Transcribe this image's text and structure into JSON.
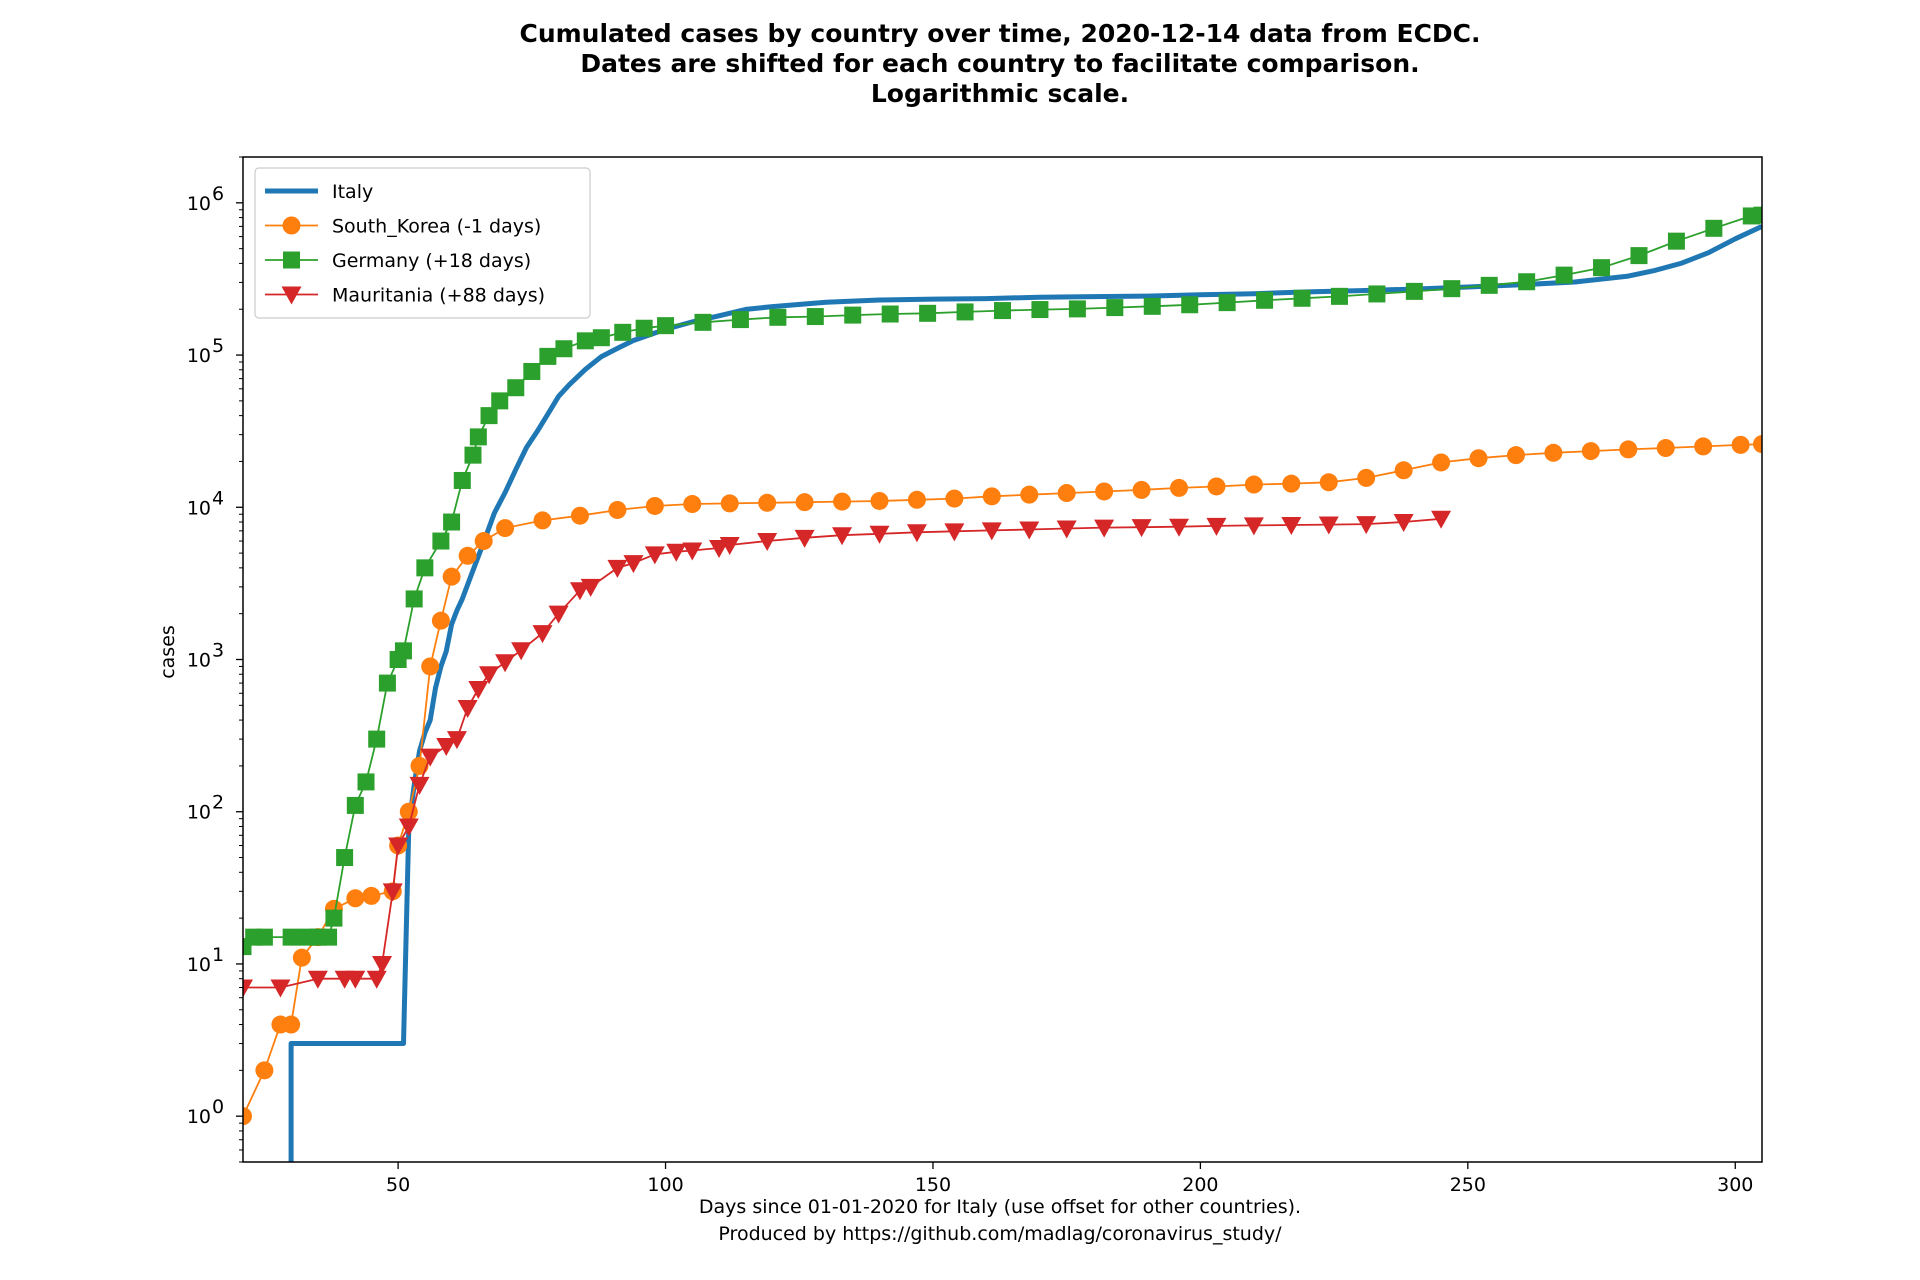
{
  "chart_data": {
    "type": "line",
    "title_lines": [
      "Cumulated cases by country over time, 2020-12-14 data from ECDC.",
      "Dates are shifted for each country to facilitate comparison.",
      "Logarithmic scale."
    ],
    "xlabel_lines": [
      "Days since 01-01-2020 for Italy (use offset for other countries).",
      "Produced by https://github.com/madlag/coronavirus_study/"
    ],
    "ylabel": "cases",
    "y_scale": "log",
    "xlim": [
      21,
      305
    ],
    "ylim": [
      0.5,
      2000000
    ],
    "x_ticks": [
      50,
      100,
      150,
      200,
      250,
      300
    ],
    "y_ticks": [
      {
        "value": 1,
        "base": "10",
        "exp": "0"
      },
      {
        "value": 10,
        "base": "10",
        "exp": "1"
      },
      {
        "value": 100,
        "base": "10",
        "exp": "2"
      },
      {
        "value": 1000,
        "base": "10",
        "exp": "3"
      },
      {
        "value": 10000,
        "base": "10",
        "exp": "4"
      },
      {
        "value": 100000,
        "base": "10",
        "exp": "5"
      },
      {
        "value": 1000000,
        "base": "10",
        "exp": "6"
      }
    ],
    "legend_position": "top-left",
    "grid": false,
    "series": [
      {
        "name": "Italy",
        "color": "#1f77b4",
        "marker": "none",
        "line_width": "thick",
        "x": [
          30,
          30,
          31,
          51,
          52,
          53,
          54,
          55,
          56,
          57,
          58,
          59,
          60,
          61,
          62,
          64,
          66,
          68,
          70,
          72,
          74,
          76,
          78,
          80,
          82,
          85,
          88,
          91,
          94,
          97,
          100,
          105,
          110,
          115,
          120,
          130,
          140,
          150,
          160,
          170,
          180,
          190,
          200,
          210,
          220,
          230,
          240,
          250,
          260,
          270,
          280,
          285,
          290,
          295,
          300,
          305
        ],
        "y": [
          0.5,
          3,
          3,
          3,
          80,
          150,
          250,
          330,
          400,
          650,
          900,
          1130,
          1700,
          2100,
          2500,
          3850,
          5900,
          9170,
          12500,
          17700,
          24700,
          31500,
          41000,
          53600,
          63900,
          80500,
          97700,
          110600,
          124600,
          135600,
          147600,
          165000,
          181000,
          199400,
          208000,
          222000,
          230000,
          233000,
          235000,
          240000,
          242000,
          244000,
          249000,
          253000,
          260000,
          265000,
          271000,
          280000,
          290000,
          302000,
          330000,
          360000,
          402000,
          470000,
          580000,
          700000
        ]
      },
      {
        "name": "South_Korea (-1 days)",
        "color": "#ff7f0e",
        "marker": "circle",
        "x": [
          21,
          25,
          28,
          30,
          32,
          35,
          38,
          42,
          45,
          49,
          50,
          52,
          54,
          56,
          58,
          60,
          63,
          66,
          70,
          77,
          84,
          91,
          98,
          105,
          112,
          119,
          126,
          133,
          140,
          147,
          154,
          161,
          168,
          175,
          182,
          189,
          196,
          203,
          210,
          217,
          224,
          231,
          238,
          245,
          252,
          259,
          266,
          273,
          280,
          287,
          294,
          301,
          305
        ],
        "y": [
          1,
          2,
          4,
          4,
          11,
          15,
          23,
          27,
          28,
          30,
          60,
          100,
          200,
          900,
          1800,
          3500,
          4800,
          6000,
          7300,
          8200,
          8800,
          9600,
          10200,
          10500,
          10600,
          10700,
          10800,
          10900,
          11000,
          11200,
          11400,
          11800,
          12100,
          12400,
          12700,
          13000,
          13400,
          13700,
          14100,
          14300,
          14600,
          15600,
          17500,
          19700,
          21000,
          22000,
          22800,
          23400,
          24000,
          24500,
          25100,
          25700,
          26000
        ]
      },
      {
        "name": "Germany (+18 days)",
        "color": "#2ca02c",
        "marker": "square",
        "x": [
          21,
          23,
          25,
          30,
          33,
          35,
          37,
          38,
          40,
          42,
          44,
          46,
          48,
          50,
          51,
          53,
          55,
          58,
          60,
          62,
          64,
          65,
          67,
          69,
          72,
          75,
          78,
          81,
          85,
          88,
          92,
          96,
          100,
          107,
          114,
          121,
          128,
          135,
          142,
          149,
          156,
          163,
          170,
          177,
          184,
          191,
          198,
          205,
          212,
          219,
          226,
          233,
          240,
          247,
          254,
          261,
          268,
          275,
          282,
          289,
          296,
          303,
          305
        ],
        "y": [
          13,
          15,
          15,
          15,
          15,
          15,
          15,
          20,
          50,
          110,
          157,
          300,
          700,
          1000,
          1140,
          2500,
          4000,
          6000,
          8000,
          15000,
          22000,
          29000,
          40000,
          50000,
          61000,
          78000,
          98000,
          110000,
          124000,
          130000,
          141000,
          150000,
          156000,
          164000,
          171000,
          177000,
          179000,
          183000,
          186000,
          188000,
          192000,
          196000,
          199000,
          201000,
          205000,
          209000,
          214000,
          221000,
          229000,
          236000,
          243000,
          252000,
          262000,
          273000,
          287000,
          303000,
          335000,
          375000,
          450000,
          560000,
          680000,
          820000,
          830000
        ]
      },
      {
        "name": "Mauritania (+88 days)",
        "color": "#d62728",
        "marker": "triangle-down",
        "x": [
          21,
          28,
          35,
          40,
          42,
          46,
          47,
          49,
          50,
          52,
          54,
          56,
          59,
          61,
          63,
          65,
          67,
          70,
          73,
          77,
          80,
          84,
          86,
          91,
          94,
          98,
          102,
          105,
          110,
          112,
          119,
          126,
          133,
          140,
          147,
          154,
          161,
          168,
          175,
          182,
          189,
          196,
          203,
          210,
          217,
          224,
          231,
          238,
          245
        ],
        "y": [
          7,
          7,
          8,
          8,
          8,
          8,
          10,
          30,
          60,
          80,
          150,
          230,
          270,
          300,
          480,
          640,
          800,
          960,
          1150,
          1490,
          2000,
          2850,
          3000,
          4000,
          4300,
          4900,
          5100,
          5200,
          5400,
          5650,
          6000,
          6300,
          6550,
          6700,
          6850,
          6950,
          7050,
          7150,
          7250,
          7350,
          7400,
          7450,
          7550,
          7600,
          7650,
          7700,
          7750,
          8000,
          8400
        ]
      }
    ]
  }
}
